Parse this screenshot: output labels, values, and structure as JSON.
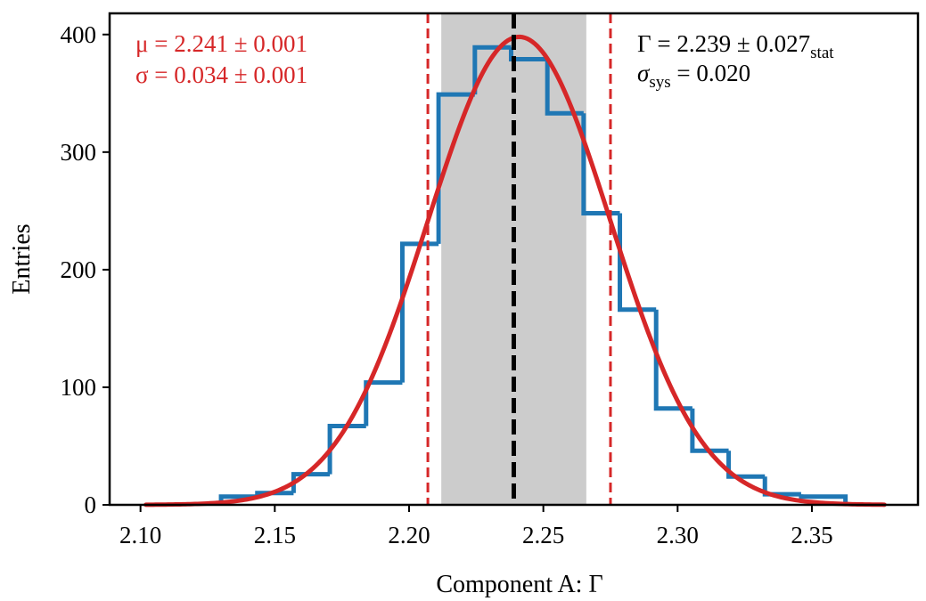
{
  "chart_data": {
    "type": "histogram",
    "title": "",
    "xlabel": "Component A: Γ",
    "ylabel": "Entries",
    "xlim": [
      2.0885,
      2.3895
    ],
    "ylim": [
      0,
      418
    ],
    "x_ticks": [
      2.1,
      2.15,
      2.2,
      2.25,
      2.3,
      2.35
    ],
    "x_tick_labels": [
      "2.10",
      "2.15",
      "2.20",
      "2.25",
      "2.30",
      "2.35"
    ],
    "y_ticks": [
      0,
      100,
      200,
      300,
      400
    ],
    "y_tick_labels": [
      "0",
      "100",
      "200",
      "300",
      "400"
    ],
    "series": [
      {
        "name": "histogram",
        "kind": "step",
        "color": "#1f77b4",
        "bin_edges": [
          2.13,
          2.1435,
          2.157,
          2.1705,
          2.184,
          2.1975,
          2.211,
          2.2245,
          2.238,
          2.2515,
          2.265,
          2.2785,
          2.292,
          2.3055,
          2.319,
          2.3325,
          2.346,
          2.3625
        ],
        "counts": [
          7,
          10,
          26,
          67,
          104,
          222,
          349,
          389,
          379,
          333,
          248,
          166,
          82,
          46,
          24,
          9,
          7
        ]
      },
      {
        "name": "gaussian fit",
        "kind": "line",
        "color": "#d62728",
        "amplitude": 398,
        "mean": 2.241,
        "sigma": 0.034,
        "x_range": [
          2.102,
          2.377
        ]
      }
    ],
    "band": {
      "x_range": [
        2.212,
        2.266
      ],
      "color": "#cccccc"
    },
    "central_line": {
      "x": 2.239,
      "color": "#000000",
      "style": "dashed"
    },
    "fit_sigma_lines": {
      "x": [
        2.207,
        2.275
      ],
      "color": "#d62728",
      "style": "dashed"
    },
    "annotations": {
      "fit_mu": "μ = 2.241 ± 0.001",
      "fit_sigma": "σ = 0.034 ± 0.001",
      "result_main": "Γ = 2.239 ± 0.027",
      "result_main_sub": "stat",
      "result_sys_sym": "σ",
      "result_sys_sub": "sys",
      "result_sys_val": " = 0.020"
    }
  }
}
